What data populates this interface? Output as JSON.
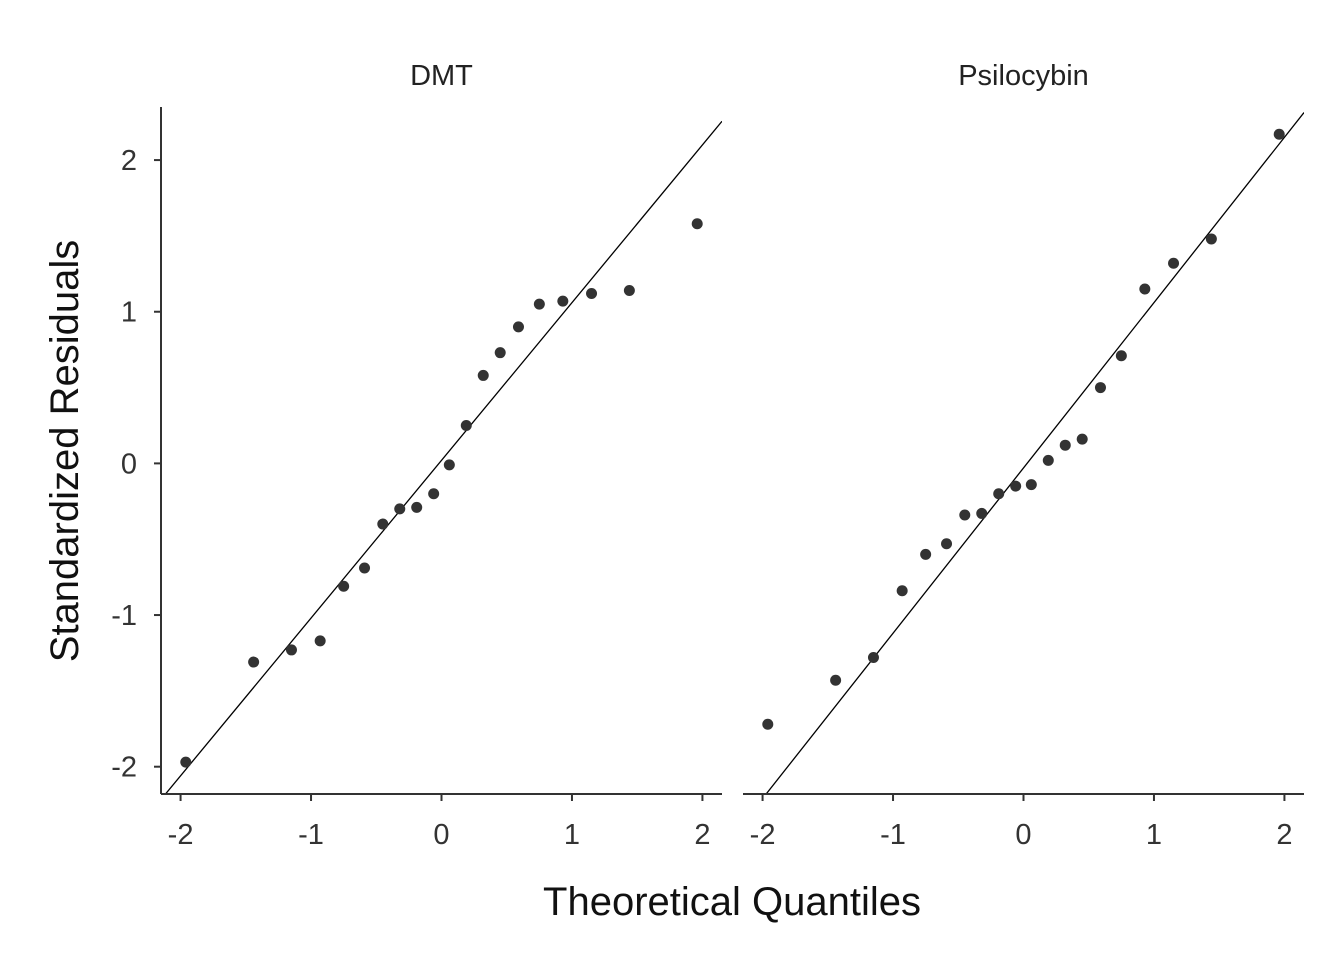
{
  "chart_data": {
    "type": "scatter",
    "xlabel": "Theoretical Quantiles",
    "ylabel": "Standardized Residuals",
    "xlim": [
      -2.15,
      2.15
    ],
    "ylim": [
      -2.18,
      2.35
    ],
    "x_ticks": [
      -2,
      -1,
      0,
      1,
      2
    ],
    "y_ticks": [
      -2,
      -1,
      0,
      1,
      2
    ],
    "x_tick_labels": [
      "-2",
      "-1",
      "0",
      "1",
      "2"
    ],
    "y_tick_labels": [
      "-2",
      "-1",
      "0",
      "1",
      "2"
    ],
    "grid": false,
    "panels": [
      {
        "title": "DMT",
        "reference_line": {
          "intercept": 0.02,
          "slope": 1.04
        },
        "points": [
          {
            "x": -1.96,
            "y": -1.97
          },
          {
            "x": -1.44,
            "y": -1.31
          },
          {
            "x": -1.15,
            "y": -1.23
          },
          {
            "x": -0.93,
            "y": -1.17
          },
          {
            "x": -0.75,
            "y": -0.81
          },
          {
            "x": -0.59,
            "y": -0.69
          },
          {
            "x": -0.45,
            "y": -0.4
          },
          {
            "x": -0.32,
            "y": -0.3
          },
          {
            "x": -0.19,
            "y": -0.29
          },
          {
            "x": -0.06,
            "y": -0.2
          },
          {
            "x": 0.06,
            "y": -0.01
          },
          {
            "x": 0.19,
            "y": 0.25
          },
          {
            "x": 0.32,
            "y": 0.58
          },
          {
            "x": 0.45,
            "y": 0.73
          },
          {
            "x": 0.59,
            "y": 0.9
          },
          {
            "x": 0.75,
            "y": 1.05
          },
          {
            "x": 0.93,
            "y": 1.07
          },
          {
            "x": 1.15,
            "y": 1.12
          },
          {
            "x": 1.44,
            "y": 1.14
          },
          {
            "x": 1.96,
            "y": 1.58
          }
        ]
      },
      {
        "title": "Psilocybin",
        "reference_line": {
          "intercept": -0.03,
          "slope": 1.09
        },
        "points": [
          {
            "x": -1.96,
            "y": -1.72
          },
          {
            "x": -1.44,
            "y": -1.43
          },
          {
            "x": -1.15,
            "y": -1.28
          },
          {
            "x": -0.93,
            "y": -0.84
          },
          {
            "x": -0.75,
            "y": -0.6
          },
          {
            "x": -0.59,
            "y": -0.53
          },
          {
            "x": -0.45,
            "y": -0.34
          },
          {
            "x": -0.32,
            "y": -0.33
          },
          {
            "x": -0.19,
            "y": -0.2
          },
          {
            "x": -0.06,
            "y": -0.15
          },
          {
            "x": 0.06,
            "y": -0.14
          },
          {
            "x": 0.19,
            "y": 0.02
          },
          {
            "x": 0.32,
            "y": 0.12
          },
          {
            "x": 0.45,
            "y": 0.16
          },
          {
            "x": 0.59,
            "y": 0.5
          },
          {
            "x": 0.75,
            "y": 0.71
          },
          {
            "x": 0.93,
            "y": 1.15
          },
          {
            "x": 1.15,
            "y": 1.32
          },
          {
            "x": 1.44,
            "y": 1.48
          },
          {
            "x": 1.96,
            "y": 2.17
          }
        ]
      }
    ]
  },
  "colors": {
    "point": "#333333",
    "reference_line": "#000000",
    "axis": "#333333"
  }
}
